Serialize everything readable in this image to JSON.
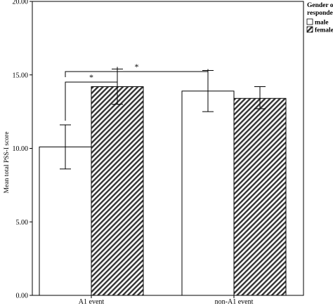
{
  "chart_data": {
    "type": "bar",
    "title": "",
    "xlabel": "",
    "ylabel": "Mean total PSS-I score",
    "ylim": [
      0,
      20
    ],
    "y_ticks": [
      "0.00",
      "5.00",
      "10.00",
      "15.00",
      "20.00"
    ],
    "y_tick_values": [
      0,
      5,
      10,
      15,
      20
    ],
    "grid": false,
    "categories": [
      "A1 event",
      "non-A1 event"
    ],
    "legend": {
      "title": "Gender of respondent",
      "placement": "right",
      "items": [
        "male",
        "female"
      ]
    },
    "series": [
      {
        "name": "male",
        "pattern": "open",
        "values": [
          10.1,
          13.9
        ],
        "error_low": [
          8.6,
          12.5
        ],
        "error_high": [
          11.6,
          15.3
        ]
      },
      {
        "name": "female",
        "pattern": "hatched",
        "values": [
          14.2,
          13.4
        ],
        "error_low": [
          13.0,
          12.7
        ],
        "error_high": [
          15.4,
          14.2
        ]
      }
    ],
    "annotations": [
      {
        "label": "*",
        "between": "A1 event male vs A1 event female"
      },
      {
        "label": "*",
        "between": "A1 event male vs non-A1 event male"
      }
    ],
    "colors": {
      "bar_fill": "#ffffff",
      "hatch": "#333333",
      "stroke": "#000000"
    }
  }
}
